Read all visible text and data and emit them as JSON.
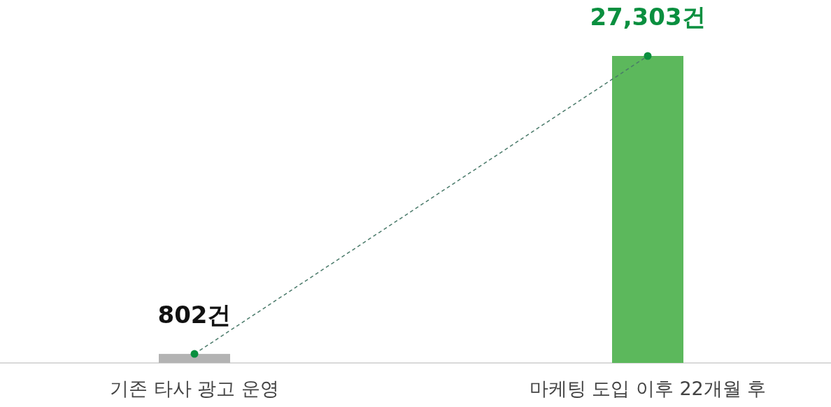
{
  "chart_data": {
    "type": "bar",
    "categories": [
      "기존 타사 광고 운영",
      "마케팅 도입 이후 22개월 후"
    ],
    "series": [
      {
        "colors": [
          "#b3b3b3",
          "#5cb85c"
        ],
        "values": [
          802,
          27303
        ],
        "value_labels": [
          "802건",
          "27,303건"
        ]
      },
      {
        "type": "line",
        "color": "#4a7a6a",
        "values": [
          802,
          27303
        ],
        "line_style": "dashed",
        "marker": "circle"
      }
    ]
  }
}
